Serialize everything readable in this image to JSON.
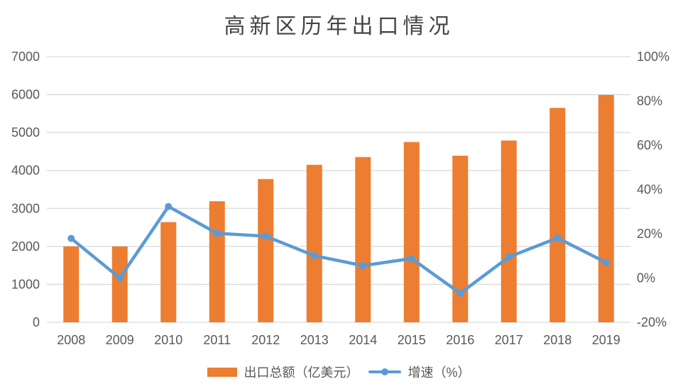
{
  "chart_data": {
    "type": "bar",
    "title": "高新区历年出口情况",
    "categories": [
      "2008",
      "2009",
      "2010",
      "2011",
      "2012",
      "2013",
      "2014",
      "2015",
      "2016",
      "2017",
      "2018",
      "2019"
    ],
    "series": [
      {
        "name": "出口总额（亿美元）",
        "type": "bar",
        "axis": "left",
        "color": "#ED7D31",
        "values": [
          2000,
          2000,
          2640,
          3190,
          3775,
          4150,
          4355,
          4750,
          4390,
          4790,
          5650,
          5990
        ]
      },
      {
        "name": "增速（%）",
        "type": "line",
        "axis": "right",
        "color": "#5B9BD5",
        "values": [
          17.9,
          0,
          32.3,
          20.2,
          18.9,
          10.1,
          5.6,
          8.8,
          -6.9,
          9.5,
          18.1,
          7.0
        ]
      }
    ],
    "left_axis": {
      "min": 0,
      "max": 7000,
      "step": 1000,
      "tick_labels": [
        "0",
        "1000",
        "2000",
        "3000",
        "4000",
        "5000",
        "6000",
        "7000"
      ]
    },
    "right_axis": {
      "min": -20,
      "max": 100,
      "step": 20,
      "tick_labels": [
        "-20%",
        "0%",
        "20%",
        "40%",
        "60%",
        "80%",
        "100%"
      ]
    },
    "grid": true,
    "legend_position": "bottom",
    "colors": {
      "grid": "#D9D9D9",
      "axis_text": "#595959",
      "title_text": "#444444",
      "background": "#FFFFFF"
    }
  }
}
